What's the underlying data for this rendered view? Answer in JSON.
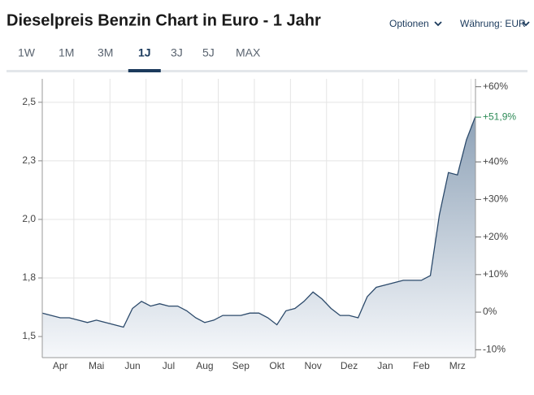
{
  "header": {
    "title": "Dieselpreis Benzin Chart in Euro - 1 Jahr",
    "options": "Optionen",
    "currency": "Währung: EUR",
    "tabs": [
      "1W",
      "1M",
      "3M",
      "1J",
      "3J",
      "5J",
      "MAX"
    ],
    "active_tab": 3
  },
  "chart_data": {
    "type": "line",
    "categories": [
      null,
      null,
      "Apr",
      null,
      null,
      null,
      "Mai",
      null,
      null,
      null,
      "Jun",
      null,
      null,
      null,
      "Jul",
      null,
      null,
      null,
      "Aug",
      null,
      null,
      null,
      "Sep",
      null,
      null,
      null,
      "Okt",
      null,
      null,
      null,
      "Nov",
      null,
      null,
      null,
      "Dez",
      null,
      null,
      null,
      "Jan",
      null,
      null,
      null,
      "Feb",
      null,
      null,
      null,
      "Mrz",
      null,
      null
    ],
    "series": [
      {
        "color": "#2c4a6b",
        "values": [
          1.6,
          1.59,
          1.58,
          1.58,
          1.57,
          1.56,
          1.57,
          1.56,
          1.55,
          1.54,
          1.62,
          1.65,
          1.63,
          1.64,
          1.63,
          1.63,
          1.61,
          1.58,
          1.56,
          1.57,
          1.59,
          1.59,
          1.59,
          1.6,
          1.6,
          1.58,
          1.55,
          1.61,
          1.62,
          1.65,
          1.69,
          1.66,
          1.62,
          1.59,
          1.59,
          1.58,
          1.67,
          1.71,
          1.72,
          1.73,
          1.74,
          1.74,
          1.74,
          1.76,
          2.02,
          2.2,
          2.19,
          2.34,
          2.44
        ]
      }
    ],
    "ylim": [
      1.41,
      2.6
    ],
    "yticks": [
      {
        "value": 2.5,
        "label": "2,5"
      },
      {
        "value": 2.25,
        "label": "2,3"
      },
      {
        "value": 2.0,
        "label": "2,0"
      },
      {
        "value": 1.75,
        "label": "1,8"
      },
      {
        "value": 1.5,
        "label": "1,5"
      }
    ],
    "y2lim": [
      -12.1,
      62.1
    ],
    "y2ticks": [
      {
        "value": 60,
        "label": "+60%"
      },
      {
        "value": 40,
        "label": "+40%"
      },
      {
        "value": 30,
        "label": "+30%"
      },
      {
        "value": 20,
        "label": "+20%"
      },
      {
        "value": 10,
        "label": "+10%"
      },
      {
        "value": 0,
        "label": "0%"
      },
      {
        "value": -10,
        "label": "-10%"
      }
    ],
    "annotation": {
      "text": "+51,9%",
      "value": 51.9,
      "color": "#2e8b57"
    },
    "grid": true
  }
}
